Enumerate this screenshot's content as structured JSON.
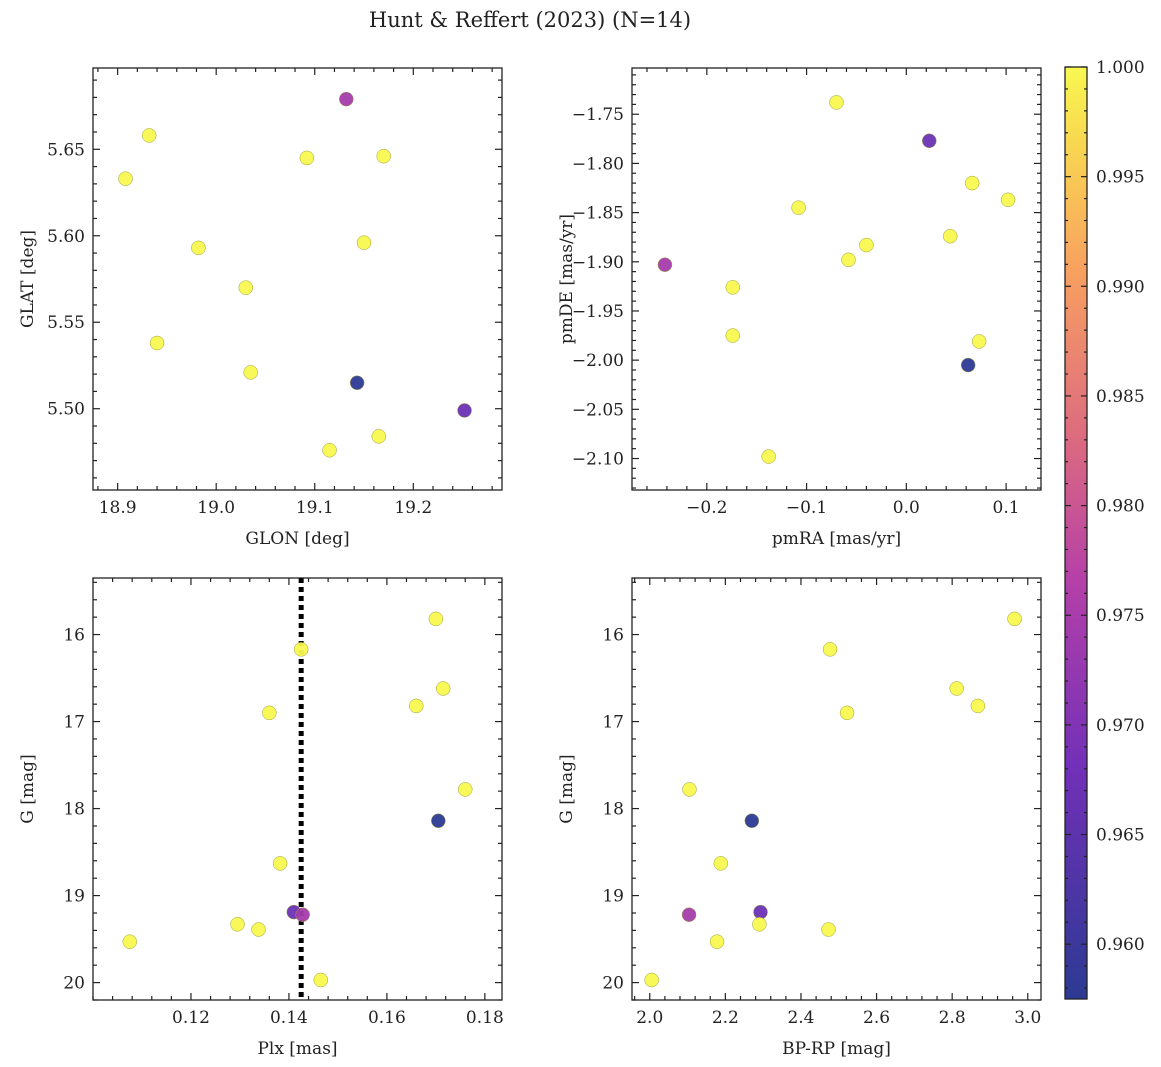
{
  "title": "Hunt & Reffert (2023) (N=14)",
  "colorbar": {
    "min": 0.9575,
    "max": 1.0,
    "ticks": [
      0.96,
      0.965,
      0.97,
      0.975,
      0.98,
      0.985,
      0.99,
      0.995,
      1.0
    ],
    "tick_labels": [
      "0.960",
      "0.965",
      "0.970",
      "0.975",
      "0.980",
      "0.985",
      "0.990",
      "0.995",
      "1.000"
    ],
    "colormap": "plasma"
  },
  "chart_data": [
    {
      "type": "scatter",
      "name": "glon-glat",
      "xlabel": "GLON [deg]",
      "ylabel": "GLAT [deg]",
      "xlim": [
        18.875,
        19.29
      ],
      "ylim": [
        5.453,
        5.697
      ],
      "xticks": [
        18.9,
        19.0,
        19.1,
        19.2
      ],
      "xtick_labels": [
        "18.9",
        "19.0",
        "19.1",
        "19.2"
      ],
      "yticks": [
        5.5,
        5.55,
        5.6,
        5.65
      ],
      "ytick_labels": [
        "5.50",
        "5.55",
        "5.60",
        "5.65"
      ],
      "invert_y": false,
      "x": [
        18.932,
        18.908,
        18.982,
        19.092,
        19.17,
        19.15,
        19.03,
        18.94,
        19.035,
        19.143,
        19.252,
        19.165,
        19.115,
        19.132
      ],
      "y": [
        5.658,
        5.633,
        5.593,
        5.645,
        5.646,
        5.596,
        5.57,
        5.538,
        5.521,
        5.515,
        5.499,
        5.484,
        5.476,
        5.679
      ],
      "c": [
        1.0,
        1.0,
        1.0,
        1.0,
        1.0,
        1.0,
        1.0,
        1.0,
        1.0,
        0.9575,
        0.967,
        1.0,
        1.0,
        0.9745
      ]
    },
    {
      "type": "scatter",
      "name": "pmra-pmde",
      "xlabel": "pmRA [mas/yr]",
      "ylabel": "pmDE [mas/yr]",
      "xlim": [
        -0.275,
        0.135
      ],
      "ylim": [
        -2.132,
        -1.703
      ],
      "xticks": [
        -0.2,
        -0.1,
        0.0,
        0.1
      ],
      "xtick_labels": [
        "−0.2",
        "−0.1",
        "0.0",
        "0.1"
      ],
      "yticks": [
        -2.1,
        -2.05,
        -2.0,
        -1.95,
        -1.9,
        -1.85,
        -1.8,
        -1.75
      ],
      "ytick_labels": [
        "−2.10",
        "−2.05",
        "−2.00",
        "−1.95",
        "−1.90",
        "−1.85",
        "−1.80",
        "−1.75"
      ],
      "invert_y": false,
      "x": [
        -0.07,
        0.023,
        0.066,
        0.102,
        -0.108,
        0.044,
        -0.04,
        -0.058,
        -0.242,
        -0.174,
        -0.174,
        0.073,
        0.062,
        -0.138
      ],
      "y": [
        -1.738,
        -1.777,
        -1.82,
        -1.837,
        -1.845,
        -1.874,
        -1.883,
        -1.898,
        -1.903,
        -1.926,
        -1.975,
        -1.981,
        -2.005,
        -2.098
      ],
      "c": [
        1.0,
        0.967,
        1.0,
        1.0,
        1.0,
        1.0,
        1.0,
        1.0,
        0.9745,
        1.0,
        1.0,
        1.0,
        0.9575,
        1.0
      ]
    },
    {
      "type": "scatter",
      "name": "plx-g",
      "xlabel": "Plx [mas]",
      "ylabel": "G [mag]",
      "xlim": [
        0.1,
        0.1835
      ],
      "ylim": [
        15.35,
        20.2
      ],
      "xticks": [
        0.12,
        0.14,
        0.16,
        0.18
      ],
      "xtick_labels": [
        "0.12",
        "0.14",
        "0.16",
        "0.18"
      ],
      "yticks": [
        16,
        17,
        18,
        19,
        20
      ],
      "ytick_labels": [
        "16",
        "17",
        "18",
        "19",
        "20"
      ],
      "invert_y": true,
      "vline": 0.1425,
      "x": [
        0.17,
        0.1425,
        0.1715,
        0.166,
        0.136,
        0.176,
        0.1705,
        0.1382,
        0.141,
        0.1428,
        0.1295,
        0.1338,
        0.1075,
        0.1465
      ],
      "y": [
        15.82,
        16.17,
        16.62,
        16.82,
        16.9,
        17.78,
        18.14,
        18.63,
        19.19,
        19.22,
        19.33,
        19.39,
        19.53,
        19.97
      ],
      "c": [
        1.0,
        1.0,
        1.0,
        1.0,
        1.0,
        1.0,
        0.9575,
        1.0,
        0.967,
        0.9745,
        1.0,
        1.0,
        1.0,
        1.0
      ]
    },
    {
      "type": "scatter",
      "name": "bprp-g",
      "xlabel": "BP-RP [mag]",
      "ylabel": "G [mag]",
      "xlim": [
        1.953,
        3.035
      ],
      "ylim": [
        15.35,
        20.2
      ],
      "xticks": [
        2.0,
        2.2,
        2.4,
        2.6,
        2.8,
        3.0
      ],
      "xtick_labels": [
        "2.0",
        "2.2",
        "2.4",
        "2.6",
        "2.8",
        "3.0"
      ],
      "yticks": [
        16,
        17,
        18,
        19,
        20
      ],
      "ytick_labels": [
        "16",
        "17",
        "18",
        "19",
        "20"
      ],
      "invert_y": true,
      "x": [
        2.965,
        2.477,
        2.812,
        2.868,
        2.522,
        2.105,
        2.27,
        2.188,
        2.293,
        2.104,
        2.29,
        2.473,
        2.178,
        2.005
      ],
      "y": [
        15.82,
        16.17,
        16.62,
        16.82,
        16.9,
        17.78,
        18.14,
        18.63,
        19.19,
        19.22,
        19.33,
        19.39,
        19.53,
        19.97
      ],
      "c": [
        1.0,
        1.0,
        1.0,
        1.0,
        1.0,
        1.0,
        0.9575,
        1.0,
        0.967,
        0.9745,
        1.0,
        1.0,
        1.0,
        1.0
      ]
    }
  ]
}
